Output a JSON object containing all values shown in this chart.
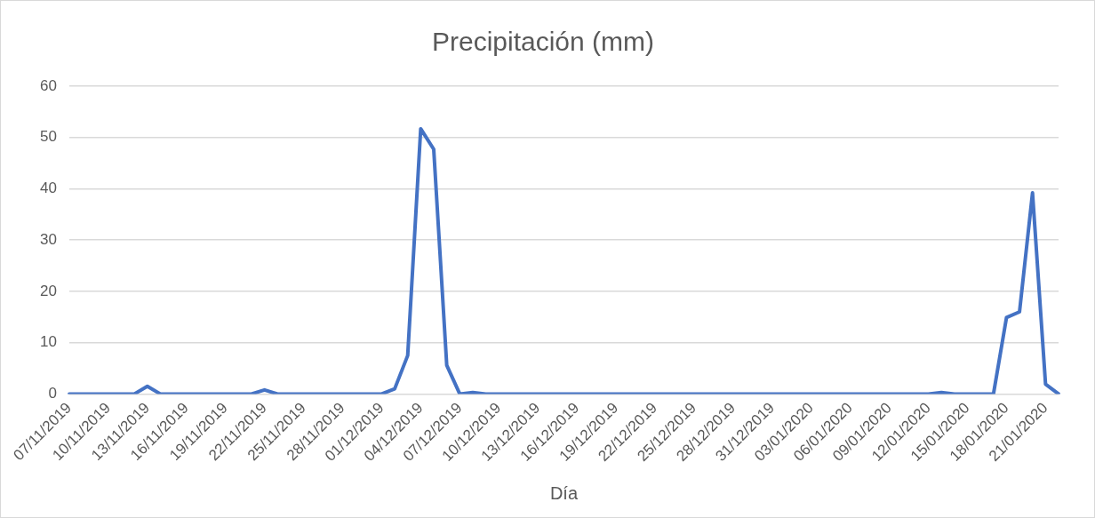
{
  "chart_data": {
    "type": "line",
    "title": "Precipitación (mm)",
    "xlabel": "Día",
    "categories": [
      "07/11/2019",
      null,
      null,
      "10/11/2019",
      null,
      null,
      "13/11/2019",
      null,
      null,
      "16/11/2019",
      null,
      null,
      "19/11/2019",
      null,
      null,
      "22/11/2019",
      null,
      null,
      "25/11/2019",
      null,
      null,
      "28/11/2019",
      null,
      null,
      "01/12/2019",
      null,
      null,
      "04/12/2019",
      null,
      null,
      "07/12/2019",
      null,
      null,
      "10/12/2019",
      null,
      null,
      "13/12/2019",
      null,
      null,
      "16/12/2019",
      null,
      null,
      "19/12/2019",
      null,
      null,
      "22/12/2019",
      null,
      null,
      "25/12/2019",
      null,
      null,
      "28/12/2019",
      null,
      null,
      "31/12/2019",
      null,
      null,
      "03/01/2020",
      null,
      null,
      "06/01/2020",
      null,
      null,
      "09/01/2020",
      null,
      null,
      "12/01/2020",
      null,
      null,
      "15/01/2020",
      null,
      null,
      "18/01/2020",
      null,
      null,
      "21/01/2020",
      null
    ],
    "series": [
      {
        "color": "#4472c4",
        "values": [
          0,
          0,
          0,
          0,
          0,
          0,
          1.5,
          0,
          0,
          0,
          0,
          0,
          0,
          0,
          0,
          0.8,
          0,
          0,
          0,
          0,
          0,
          0,
          0,
          0,
          0,
          1,
          7.5,
          51.7,
          47.7,
          5.6,
          0,
          0.3,
          0,
          0,
          0,
          0,
          0,
          0,
          0,
          0,
          0,
          0,
          0,
          0,
          0,
          0,
          0,
          0,
          0,
          0,
          0,
          0,
          0,
          0,
          0,
          0,
          0,
          0,
          0,
          0,
          0,
          0,
          0,
          0,
          0,
          0,
          0,
          0.3,
          0,
          0,
          0,
          0,
          14.9,
          16,
          39.2,
          1.9,
          0
        ]
      }
    ],
    "ylim": [
      0,
      60
    ],
    "yticks": [
      0,
      10,
      20,
      30,
      40,
      50,
      60
    ],
    "grid": "y",
    "legend": false,
    "marker": "none",
    "line_style": "solid"
  }
}
